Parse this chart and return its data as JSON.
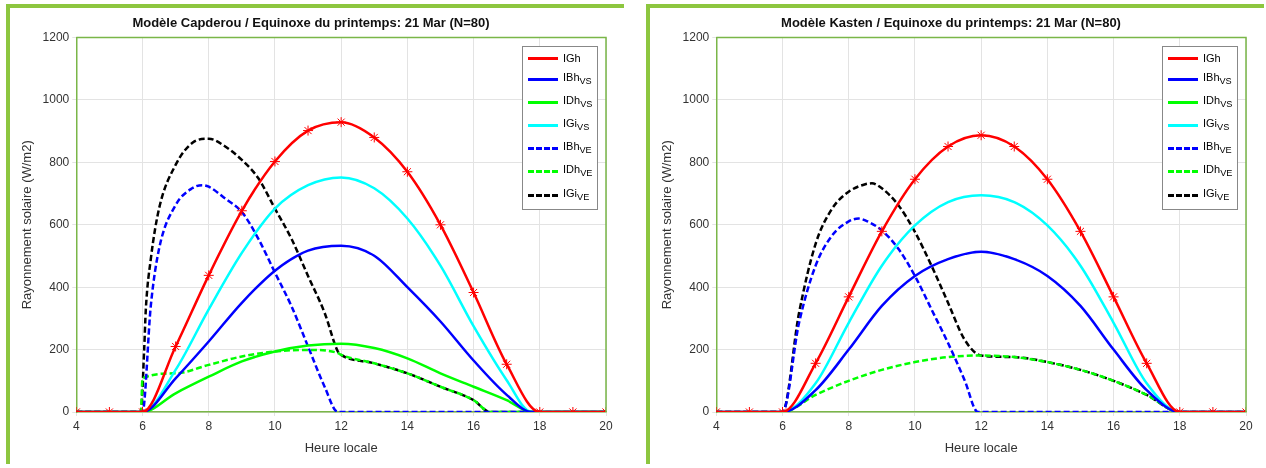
{
  "chart_data": [
    {
      "type": "line",
      "title": "Modèle Capderou / Equinoxe du printemps: 21 Mar (N=80)",
      "xlabel": "Heure locale",
      "ylabel": "Rayonnement solaire (W/m2)",
      "xlim": [
        4,
        20
      ],
      "xticks": [
        4,
        6,
        8,
        10,
        12,
        14,
        16,
        18,
        20
      ],
      "ylim": [
        0,
        1200
      ],
      "yticks": [
        0,
        200,
        400,
        600,
        800,
        1000,
        1200
      ],
      "grid": true,
      "legend": "top right",
      "series": [
        {
          "name": "IGh",
          "color": "#ff0000",
          "marker": "cross",
          "line_style": "solid",
          "x": [
            4,
            5,
            6,
            7,
            8,
            9,
            10,
            11,
            12,
            13,
            14,
            15,
            16,
            17,
            18,
            19,
            20
          ],
          "values": [
            0,
            0,
            0,
            210,
            438,
            645,
            803,
            902,
            929,
            880,
            770,
            600,
            383,
            153,
            0,
            0,
            0
          ]
        },
        {
          "name": "IBh$_{VS}$",
          "color": "#0000ff",
          "marker": "none",
          "line_style": "solid",
          "x": [
            4,
            6,
            7,
            8,
            9,
            10,
            11,
            12,
            13,
            14,
            15,
            16,
            17,
            17.75,
            20
          ],
          "values": [
            0,
            0,
            108,
            226,
            350,
            453,
            517,
            533,
            501,
            400,
            290,
            165,
            55,
            0,
            0
          ]
        },
        {
          "name": "IDh$_{VS}$",
          "color": "#00ff00",
          "marker": "none",
          "line_style": "solid",
          "x": [
            4,
            6,
            7,
            8,
            9,
            10,
            11,
            12,
            13,
            14,
            15,
            16,
            17,
            17.75,
            20
          ],
          "values": [
            0,
            0,
            60,
            113,
            162,
            194,
            213,
            219,
            205,
            172,
            124,
            81,
            38,
            0,
            0
          ]
        },
        {
          "name": "IGi$_{VS}$",
          "color": "#00ffff",
          "marker": "none",
          "line_style": "solid",
          "x": [
            4,
            6,
            7,
            8,
            9,
            10,
            11,
            12,
            13,
            14,
            15,
            16,
            17,
            17.75,
            20
          ],
          "values": [
            0,
            0,
            135,
            329,
            510,
            652,
            727,
            752,
            717,
            620,
            469,
            275,
            102,
            0,
            0
          ]
        },
        {
          "name": "IBh$_{VE}$",
          "color": "#0000ff",
          "marker": "none",
          "line_style": "dashed",
          "x": [
            4,
            6,
            6.25,
            6.5,
            7,
            7.5,
            7.8,
            8,
            8.5,
            9,
            9.5,
            10,
            10.5,
            11,
            11.5,
            11.9,
            20
          ],
          "values": [
            0,
            0,
            340,
            523,
            663,
            717,
            727,
            722,
            684,
            641,
            555,
            447,
            339,
            210,
            81,
            0,
            0
          ]
        },
        {
          "name": "IDh$_{VE}$",
          "color": "#00ff00",
          "marker": "none",
          "line_style": "dashed",
          "x": [
            4,
            5.95,
            6,
            7,
            8,
            9,
            10,
            11,
            11.9,
            12,
            13,
            14,
            15,
            16,
            16.5,
            20
          ],
          "values": [
            0,
            0,
            108,
            124,
            151,
            178,
            194,
            199,
            189,
            183,
            156,
            124,
            81,
            38,
            0,
            0
          ]
        },
        {
          "name": "IGi$_{VE}$",
          "color": "#000000",
          "marker": "none",
          "line_style": "dashed",
          "x": [
            4,
            5.95,
            6.05,
            6.1,
            6.25,
            6.5,
            7,
            7.5,
            8,
            8.5,
            9,
            9.5,
            10,
            10.5,
            11,
            11.5,
            11.9,
            12,
            13,
            14,
            15,
            16,
            16.5,
            20
          ],
          "values": [
            0,
            0,
            200,
            329,
            490,
            652,
            792,
            862,
            876,
            851,
            808,
            749,
            652,
            555,
            436,
            318,
            194,
            183,
            156,
            124,
            81,
            38,
            0,
            0
          ]
        }
      ]
    },
    {
      "type": "line",
      "title": "Modèle Kasten / Equinoxe du printemps: 21 Mar (N=80)",
      "xlabel": "Heure locale",
      "ylabel": "Rayonnement solaire (W/m2)",
      "xlim": [
        4,
        20
      ],
      "xticks": [
        4,
        6,
        8,
        10,
        12,
        14,
        16,
        18,
        20
      ],
      "ylim": [
        0,
        1200
      ],
      "yticks": [
        0,
        200,
        400,
        600,
        800,
        1000,
        1200
      ],
      "grid": true,
      "legend": "top right",
      "series": [
        {
          "name": "IGh",
          "color": "#ff0000",
          "marker": "cross",
          "line_style": "solid",
          "x": [
            4,
            5,
            6,
            7,
            8,
            9,
            10,
            11,
            12,
            13,
            14,
            15,
            16,
            17,
            18,
            19,
            20
          ],
          "values": [
            0,
            0,
            0,
            156,
            369,
            579,
            746,
            851,
            887,
            851,
            746,
            579,
            369,
            156,
            0,
            0,
            0
          ]
        },
        {
          "name": "IBh$_{VS}$",
          "color": "#0000ff",
          "marker": "none",
          "line_style": "solid",
          "x": [
            4,
            6,
            7,
            8,
            9,
            10,
            11,
            12,
            13,
            14,
            15,
            16,
            17,
            18,
            20
          ],
          "values": [
            0,
            0,
            70,
            200,
            340,
            436,
            490,
            514,
            490,
            436,
            340,
            200,
            70,
            0,
            0
          ]
        },
        {
          "name": "IDh$_{VS}$",
          "color": "#00ff00",
          "marker": "none",
          "line_style": "solid"
        },
        {
          "name": "IGi$_{VS}$",
          "color": "#00ffff",
          "marker": "none",
          "line_style": "solid",
          "x": [
            4,
            6,
            7,
            8,
            9,
            10,
            11,
            12,
            13,
            14,
            15,
            16,
            17,
            18,
            20
          ],
          "values": [
            0,
            0,
            92,
            286,
            469,
            598,
            673,
            695,
            673,
            598,
            469,
            286,
            92,
            0,
            0
          ]
        },
        {
          "name": "IBh$_{VE}$",
          "color": "#0000ff",
          "marker": "none",
          "line_style": "dashed",
          "x": [
            4,
            6,
            6.5,
            7,
            7.5,
            8,
            8.3,
            8.5,
            9,
            9.5,
            10,
            10.5,
            11,
            11.5,
            11.9,
            20
          ],
          "values": [
            0,
            0,
            286,
            469,
            566,
            611,
            620,
            614,
            582,
            523,
            436,
            329,
            221,
            102,
            0,
            0
          ]
        },
        {
          "name": "IDh$_{VE}$",
          "color": "#00ff00",
          "marker": "none",
          "line_style": "dashed",
          "x": [
            4,
            6,
            7,
            8,
            9,
            10,
            11,
            12,
            13,
            14,
            15,
            16,
            17,
            18,
            20
          ],
          "values": [
            0,
            0,
            55,
            100,
            135,
            160,
            176,
            181,
            176,
            160,
            135,
            100,
            55,
            0,
            0
          ]
        },
        {
          "name": "IGi$_{VE}$",
          "color": "#000000",
          "marker": "none",
          "line_style": "dashed",
          "x": [
            4,
            6,
            6.5,
            7,
            7.5,
            8,
            8.5,
            8.7,
            9,
            9.5,
            10,
            10.5,
            11,
            11.5,
            12,
            13,
            14,
            15,
            16,
            17,
            18,
            20
          ],
          "values": [
            0,
            0,
            318,
            539,
            652,
            706,
            730,
            733,
            717,
            663,
            577,
            469,
            350,
            232,
            181,
            176,
            160,
            135,
            100,
            55,
            0,
            0
          ]
        }
      ]
    }
  ]
}
